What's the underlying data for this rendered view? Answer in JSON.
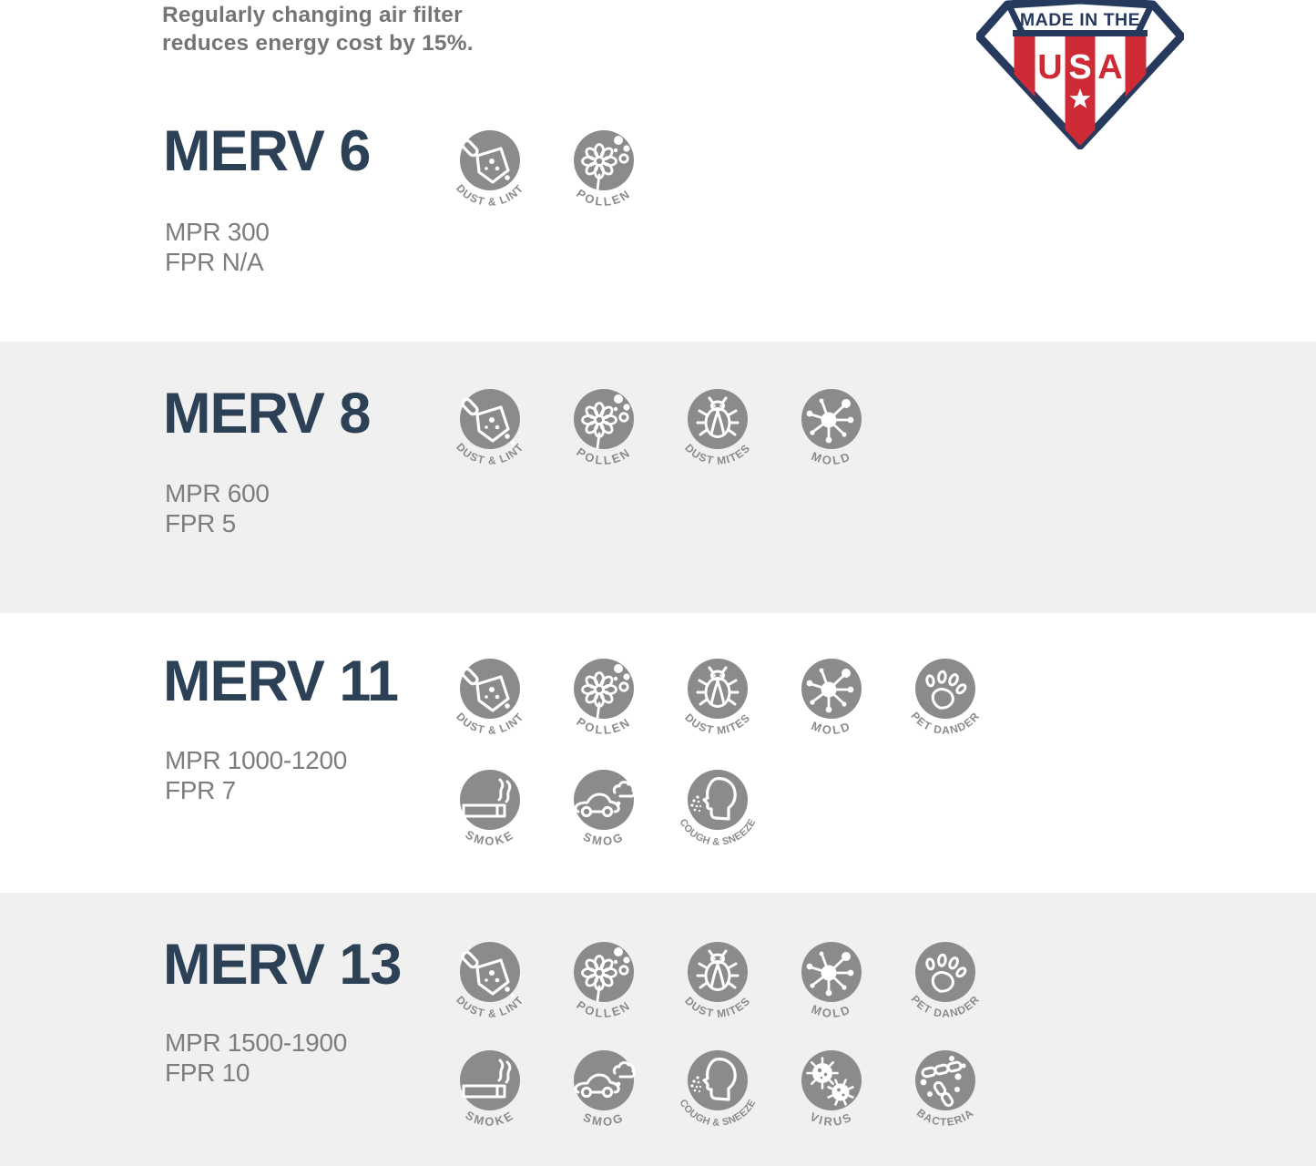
{
  "header": {
    "note_line1": "Regularly changing air filter",
    "note_line2": "reduces energy cost by 15%.",
    "badge": {
      "banner": "MADE IN THE",
      "letter_u": "U",
      "letter_s": "S",
      "letter_a": "A"
    }
  },
  "icon_labels": {
    "dust-lint": "DUST & LINT",
    "pollen": "POLLEN",
    "dust-mites": "DUST MITES",
    "mold": "MOLD",
    "pet-dander": "PET DANDER",
    "smoke": "SMOKE",
    "smog": "SMOG",
    "cough-sneeze": "COUGH & SNEEZE",
    "virus": "VIRUS",
    "bacteria": "BACTERIA"
  },
  "colors": {
    "heading_navy": "#2c4156",
    "body_text_gray": "#7d7d7d",
    "icon_gray": "#8b8b8b",
    "shaded_band_gray": "#f0f0f0",
    "badge_navy": "#263a5e",
    "badge_red": "#ce2b37"
  },
  "sections": [
    {
      "title": "MERV 6",
      "mpr": "MPR 300",
      "fpr": "FPR N/A",
      "icon_rows": [
        [
          "dust-lint",
          "pollen"
        ]
      ],
      "shaded": false
    },
    {
      "title": "MERV 8",
      "mpr": "MPR 600",
      "fpr": "FPR 5",
      "icon_rows": [
        [
          "dust-lint",
          "pollen",
          "dust-mites",
          "mold"
        ]
      ],
      "shaded": true
    },
    {
      "title": "MERV 11",
      "mpr": "MPR 1000-1200",
      "fpr": "FPR 7",
      "icon_rows": [
        [
          "dust-lint",
          "pollen",
          "dust-mites",
          "mold",
          "pet-dander"
        ],
        [
          "smoke",
          "smog",
          "cough-sneeze"
        ]
      ],
      "shaded": false
    },
    {
      "title": "MERV 13",
      "mpr": "MPR 1500-1900",
      "fpr": "FPR 10",
      "icon_rows": [
        [
          "dust-lint",
          "pollen",
          "dust-mites",
          "mold",
          "pet-dander"
        ],
        [
          "smoke",
          "smog",
          "cough-sneeze",
          "virus",
          "bacteria"
        ]
      ],
      "shaded": true
    }
  ]
}
